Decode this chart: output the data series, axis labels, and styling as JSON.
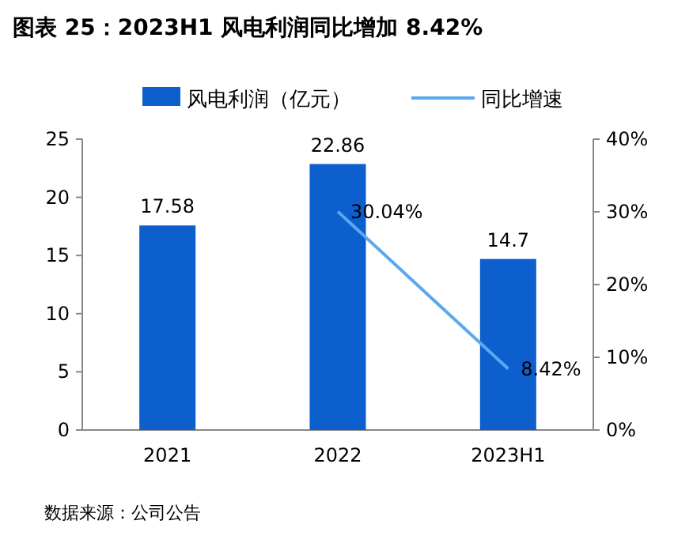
{
  "chart_data": {
    "type": "bar",
    "title": "图表 25：2023H1 风电利润同比增加 8.42%",
    "categories": [
      "2021",
      "2022",
      "2023H1"
    ],
    "series": [
      {
        "name": "风电利润（亿元）",
        "color": "#0c5fcd",
        "values": [
          17.58,
          22.86,
          14.7
        ],
        "value_labels": [
          "17.58",
          "22.86",
          "14.7"
        ]
      },
      {
        "name": "同比增速",
        "type": "line",
        "axis": "y2",
        "color": "#5ba8ee",
        "values": [
          null,
          30.04,
          8.42
        ],
        "value_labels": [
          null,
          "30.04%",
          "8.42%"
        ]
      }
    ],
    "ylim": [
      0,
      25
    ],
    "yticks": [
      0,
      5,
      10,
      15,
      20,
      25
    ],
    "y2lim": [
      0,
      40
    ],
    "y2ticks": [
      {
        "value": 0,
        "label": "0%"
      },
      {
        "value": 10,
        "label": "10%"
      },
      {
        "value": 20,
        "label": "20%"
      },
      {
        "value": 30,
        "label": "30%"
      },
      {
        "value": 40,
        "label": "40%"
      }
    ],
    "legend": "top",
    "grid": false,
    "marker": "none",
    "line_style": "solid",
    "annotations": [
      "数据来源：公司公告"
    ]
  }
}
